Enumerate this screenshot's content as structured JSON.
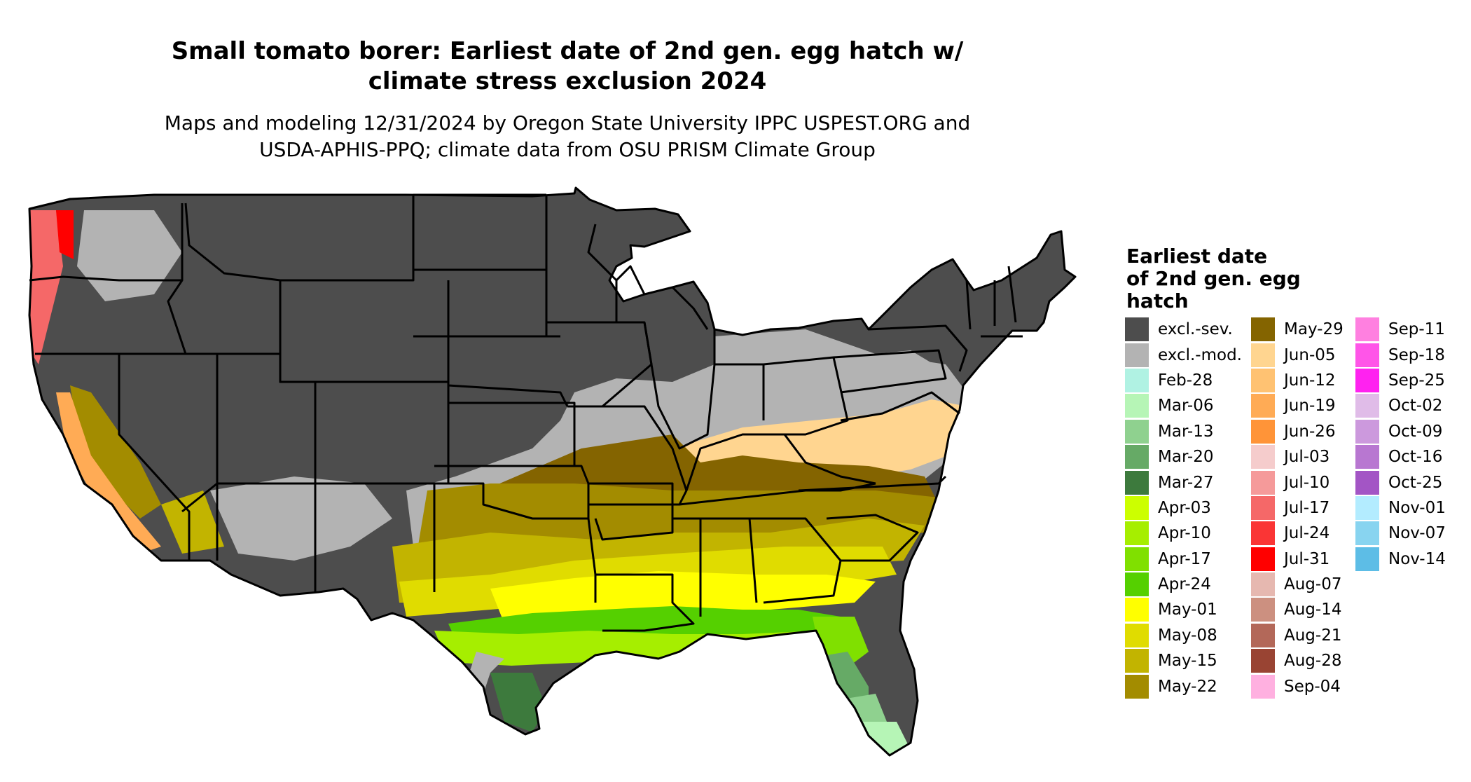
{
  "title": "Small tomato borer: Earliest date of 2nd gen. egg hatch w/ climate stress exclusion 2024",
  "subtitle": "Maps and modeling 12/31/2024 by Oregon State University IPPC USPEST.ORG and USDA-APHIS-PPQ; climate data from OSU PRISM Climate Group",
  "title_lines": [
    "Small tomato borer: Earliest date of 2nd gen. egg hatch w/",
    "climate stress exclusion 2024"
  ],
  "subtitle_lines": [
    "Maps and modeling 12/31/2024 by Oregon State University IPPC USPEST.ORG and",
    "USDA-APHIS-PPQ; climate data from OSU PRISM Climate Group"
  ],
  "legend": {
    "title_lines": [
      "Earliest date",
      "of 2nd gen. egg",
      "hatch"
    ],
    "columns": [
      [
        {
          "label": "excl.-sev.",
          "color": "#4d4d4d"
        },
        {
          "label": "excl.-mod.",
          "color": "#b3b3b3"
        },
        {
          "label": "Feb-28",
          "color": "#b0f2e3"
        },
        {
          "label": "Mar-06",
          "color": "#b6f5b6"
        },
        {
          "label": "Mar-13",
          "color": "#8fd18f"
        },
        {
          "label": "Mar-20",
          "color": "#66aa66"
        },
        {
          "label": "Mar-27",
          "color": "#3d7a3d"
        },
        {
          "label": "Apr-03",
          "color": "#ccff00"
        },
        {
          "label": "Apr-10",
          "color": "#a6ee00"
        },
        {
          "label": "Apr-17",
          "color": "#80e000"
        },
        {
          "label": "Apr-24",
          "color": "#55d000"
        },
        {
          "label": "May-01",
          "color": "#ffff00"
        },
        {
          "label": "May-08",
          "color": "#e0dc00"
        },
        {
          "label": "May-15",
          "color": "#c2b400"
        },
        {
          "label": "May-22",
          "color": "#a38c00"
        }
      ],
      [
        {
          "label": "May-29",
          "color": "#846400"
        },
        {
          "label": "Jun-05",
          "color": "#ffd590"
        },
        {
          "label": "Jun-12",
          "color": "#ffc272"
        },
        {
          "label": "Jun-19",
          "color": "#ffab55"
        },
        {
          "label": "Jun-26",
          "color": "#ff9438"
        },
        {
          "label": "Jul-03",
          "color": "#f5cccc"
        },
        {
          "label": "Jul-10",
          "color": "#f59a9a"
        },
        {
          "label": "Jul-17",
          "color": "#f56868"
        },
        {
          "label": "Jul-24",
          "color": "#fa3535"
        },
        {
          "label": "Jul-31",
          "color": "#ff0000"
        },
        {
          "label": "Aug-07",
          "color": "#e6b8b0"
        },
        {
          "label": "Aug-14",
          "color": "#cc9080"
        },
        {
          "label": "Aug-21",
          "color": "#b36859"
        },
        {
          "label": "Aug-28",
          "color": "#994433"
        },
        {
          "label": "Sep-04",
          "color": "#ffb0e0"
        }
      ],
      [
        {
          "label": "Sep-11",
          "color": "#ff80e0"
        },
        {
          "label": "Sep-18",
          "color": "#ff55e8"
        },
        {
          "label": "Sep-25",
          "color": "#ff22f0"
        },
        {
          "label": "Oct-02",
          "color": "#e0bce8"
        },
        {
          "label": "Oct-09",
          "color": "#cc99dd"
        },
        {
          "label": "Oct-16",
          "color": "#b877d1"
        },
        {
          "label": "Oct-25",
          "color": "#a355c5"
        },
        {
          "label": "Nov-01",
          "color": "#b3ecff"
        },
        {
          "label": "Nov-07",
          "color": "#88d4f0"
        },
        {
          "label": "Nov-14",
          "color": "#5dbde6"
        }
      ]
    ]
  },
  "state_border_color": "#000000"
}
